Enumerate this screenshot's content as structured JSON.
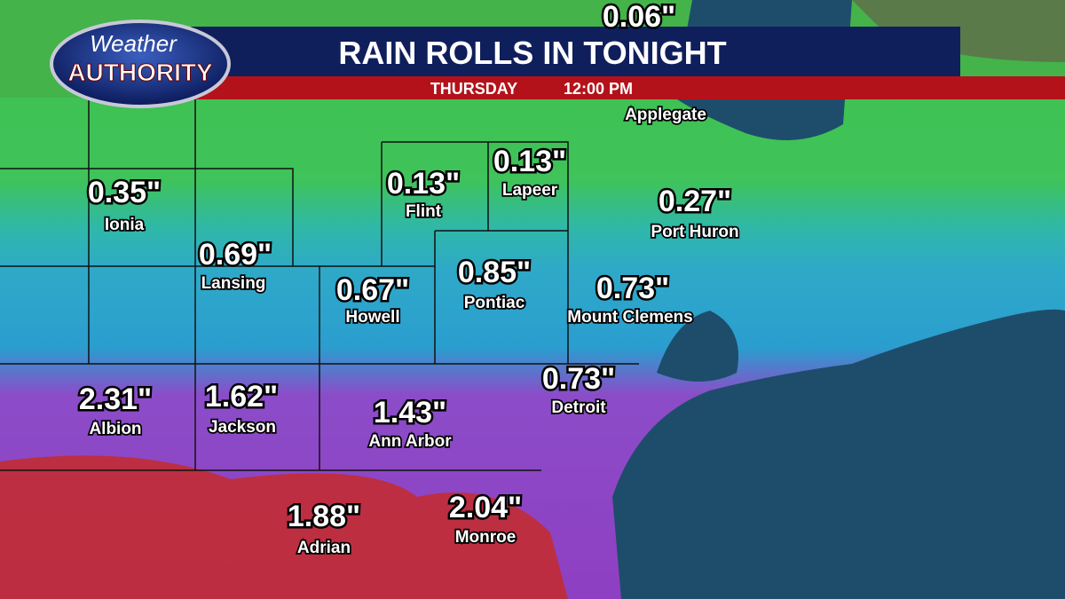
{
  "logo": {
    "line1": "Weather",
    "line2": "AUTHORITY"
  },
  "header": {
    "title": "RAIN ROLLS IN TONIGHT",
    "day": "THURSDAY",
    "time": "12:00 PM"
  },
  "partial_label": "0.06\"",
  "places": [
    {
      "name": "Applegate"
    },
    {
      "name": "Ionia",
      "amount": "0.35\""
    },
    {
      "name": "Lansing",
      "amount": "0.69\""
    },
    {
      "name": "Flint",
      "amount": "0.13\""
    },
    {
      "name": "Lapeer",
      "amount": "0.13\""
    },
    {
      "name": "Port Huron",
      "amount": "0.27\""
    },
    {
      "name": "Howell",
      "amount": "0.67\""
    },
    {
      "name": "Pontiac",
      "amount": "0.85\""
    },
    {
      "name": "Mount Clemens",
      "amount": "0.73\""
    },
    {
      "name": "Albion",
      "amount": "2.31\""
    },
    {
      "name": "Jackson",
      "amount": "1.62\""
    },
    {
      "name": "Ann Arbor",
      "amount": "1.43\""
    },
    {
      "name": "Detroit",
      "amount": "0.73\""
    },
    {
      "name": "Adrian",
      "amount": "1.88\""
    },
    {
      "name": "Monroe",
      "amount": "2.04\""
    }
  ]
}
